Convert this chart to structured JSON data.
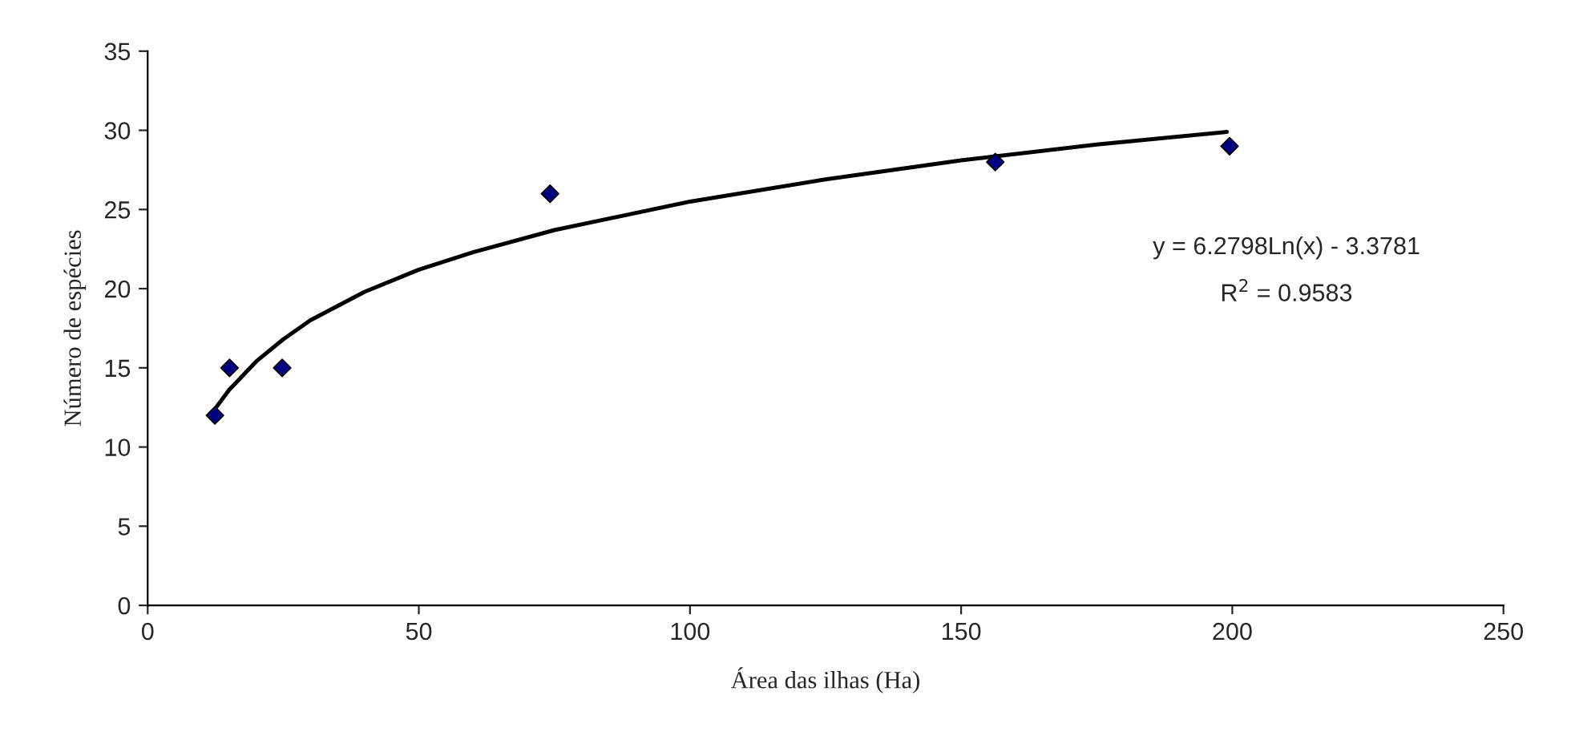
{
  "chart_data": {
    "type": "scatter",
    "xlabel": "Área das ilhas (Ha)",
    "ylabel": "Número de espécies",
    "xlim": [
      0,
      250
    ],
    "xticks": [
      0,
      50,
      100,
      150,
      200,
      250
    ],
    "ylim": [
      0,
      35
    ],
    "yticks": [
      0,
      5,
      10,
      15,
      20,
      25,
      30,
      35
    ],
    "grid": false,
    "legend": false,
    "marker": "diamond",
    "series": [
      {
        "color": "#000080",
        "x": [
          12.4,
          15.1,
          24.8,
          74.2,
          156.3,
          199.5
        ],
        "values": [
          12,
          15,
          15,
          26,
          28,
          29
        ]
      },
      {
        "type": "line",
        "color": "#000000",
        "line_style": "solid",
        "marker": "none",
        "x": [
          12.4,
          15,
          20,
          25,
          30,
          40,
          50,
          60,
          75,
          100,
          125,
          150,
          175,
          199
        ],
        "values": [
          12.4,
          13.6,
          15.4,
          16.8,
          18.0,
          19.8,
          21.2,
          22.3,
          23.7,
          25.5,
          26.9,
          28.1,
          29.1,
          29.9
        ]
      }
    ],
    "annotations": [
      "y = 6.2798Ln(x) - 3.3781",
      "R$^{2}$ = 0.9583"
    ]
  }
}
